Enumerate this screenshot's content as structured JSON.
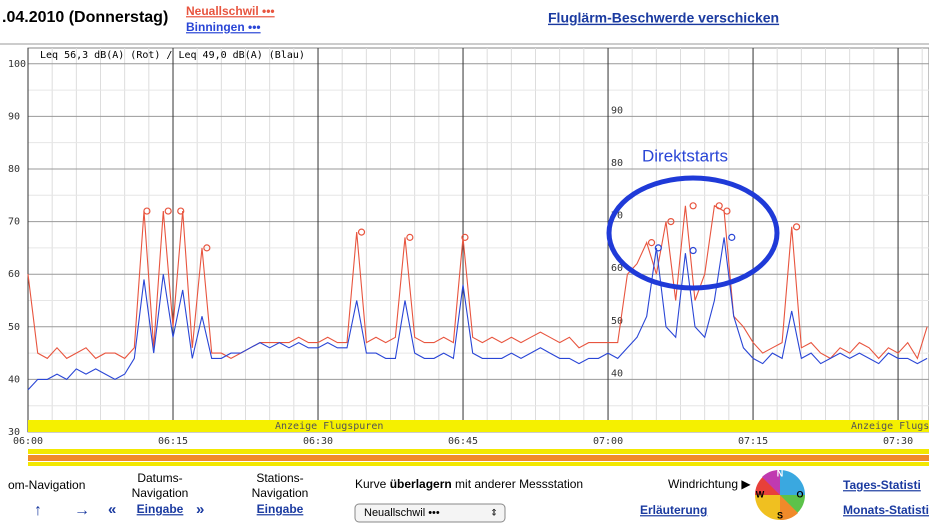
{
  "header": {
    "date": ".04.2010 (Donnerstag)",
    "station_red": "Neuallschwil •••",
    "station_blue": "Binningen •••",
    "complaint_link": "Fluglärm-Beschwerde verschicken"
  },
  "chart_data": {
    "type": "line",
    "legend_text": "Leq 56,3 dB(A) (Rot) / Leq 49,0 dB(A) (Blau)",
    "annotation": "Direktstarts",
    "band_label": "Anzeige Flugspuren",
    "x": [
      0,
      1,
      2,
      3,
      4,
      5,
      6,
      7,
      8,
      9,
      10,
      11,
      12,
      13,
      14,
      15,
      16,
      17,
      18,
      19,
      20,
      21,
      22,
      23,
      24,
      25,
      26,
      27,
      28,
      29,
      30,
      31,
      32,
      33,
      34,
      35,
      36,
      37,
      38,
      39,
      40,
      41,
      42,
      43,
      44,
      45,
      46,
      47,
      48,
      49,
      50,
      51,
      52,
      53,
      54,
      55,
      56,
      57,
      58,
      59,
      60,
      61,
      62,
      63,
      64,
      65,
      66,
      67,
      68,
      69,
      70,
      71,
      72,
      73,
      74,
      75,
      76,
      77,
      78,
      79,
      80,
      81,
      82,
      83,
      84,
      85,
      86,
      87,
      88,
      89,
      90,
      91,
      92,
      93
    ],
    "series": [
      {
        "name": "Neuallschwil",
        "color": "#e8553f",
        "values": [
          60,
          45,
          44,
          46,
          44,
          45,
          46,
          44,
          45,
          45,
          44,
          46,
          72,
          46,
          72,
          50,
          72,
          46,
          65,
          45,
          45,
          44,
          45,
          46,
          47,
          47,
          47,
          47,
          48,
          47,
          47,
          48,
          47,
          47,
          68,
          47,
          48,
          47,
          48,
          67,
          48,
          47,
          47,
          48,
          47,
          67,
          48,
          47,
          48,
          47,
          48,
          47,
          48,
          49,
          48,
          47,
          48,
          46,
          47,
          47,
          47,
          47,
          60,
          62,
          66,
          60,
          70,
          55,
          73,
          55,
          60,
          73,
          72,
          52,
          50,
          47,
          45,
          46,
          47,
          69,
          46,
          47,
          45,
          44,
          46,
          45,
          47,
          46,
          44,
          46,
          45,
          47,
          44,
          50
        ]
      },
      {
        "name": "Binningen",
        "color": "#2a46d6",
        "values": [
          38,
          40,
          40,
          41,
          40,
          42,
          41,
          42,
          41,
          40,
          41,
          44,
          59,
          45,
          60,
          48,
          57,
          44,
          52,
          44,
          44,
          45,
          45,
          46,
          47,
          46,
          47,
          46,
          47,
          46,
          46,
          47,
          46,
          46,
          55,
          45,
          45,
          44,
          44,
          55,
          45,
          44,
          44,
          45,
          44,
          58,
          45,
          44,
          44,
          44,
          45,
          44,
          45,
          46,
          45,
          44,
          44,
          43,
          44,
          44,
          45,
          44,
          46,
          48,
          52,
          65,
          50,
          48,
          64,
          50,
          48,
          55,
          67,
          52,
          46,
          44,
          43,
          45,
          44,
          53,
          44,
          45,
          43,
          44,
          45,
          44,
          45,
          44,
          43,
          45,
          44,
          44,
          43,
          44
        ]
      }
    ],
    "peaks": [
      {
        "x": [
          12.3,
          14.5,
          15.8,
          18.5,
          34.5,
          39.5,
          45.2,
          64.5,
          66.5,
          68.8,
          71.5,
          72.3,
          79.5
        ],
        "values": [
          72,
          72,
          72,
          65,
          68,
          67,
          67,
          66,
          70,
          73,
          73,
          72,
          69
        ]
      },
      {
        "x": [
          65.2,
          68.8,
          72.8
        ],
        "values": [
          65,
          64.5,
          67
        ]
      }
    ],
    "xlim": [
      0,
      93.2
    ],
    "xticks": [
      {
        "value": 0,
        "label": "06:00"
      },
      {
        "value": 15,
        "label": "06:15"
      },
      {
        "value": 30,
        "label": "06:30"
      },
      {
        "value": 45,
        "label": "06:45"
      },
      {
        "value": 60,
        "label": "07:00"
      },
      {
        "value": 75,
        "label": "07:15"
      },
      {
        "value": 90,
        "label": "07:30"
      }
    ],
    "ylim": [
      30,
      103
    ],
    "yticks": [
      30,
      40,
      50,
      60,
      70,
      80,
      90,
      100
    ],
    "grid": true
  },
  "footer": {
    "zoom_nav": "om-Navigation",
    "up": "↑",
    "right": "→",
    "date_nav_1": "Datums-",
    "date_nav_2": "Navigation",
    "prev": "«",
    "date_input": "Eingabe",
    "next": "»",
    "station_nav_1": "Stations-",
    "station_nav_2": "Navigation",
    "station_input": "Eingabe",
    "overlay_pre": "Kurve ",
    "overlay_bold": "überlagern",
    "overlay_post": " mit anderer Messstation",
    "select": "Neuallschwil •••",
    "wind": "Windrichtung ▶",
    "explain": "Erläuterung",
    "rose": [
      "N",
      "O",
      "S",
      "W"
    ],
    "daily": "Tages-Statisti",
    "monthly": "Monats-Statisti"
  }
}
